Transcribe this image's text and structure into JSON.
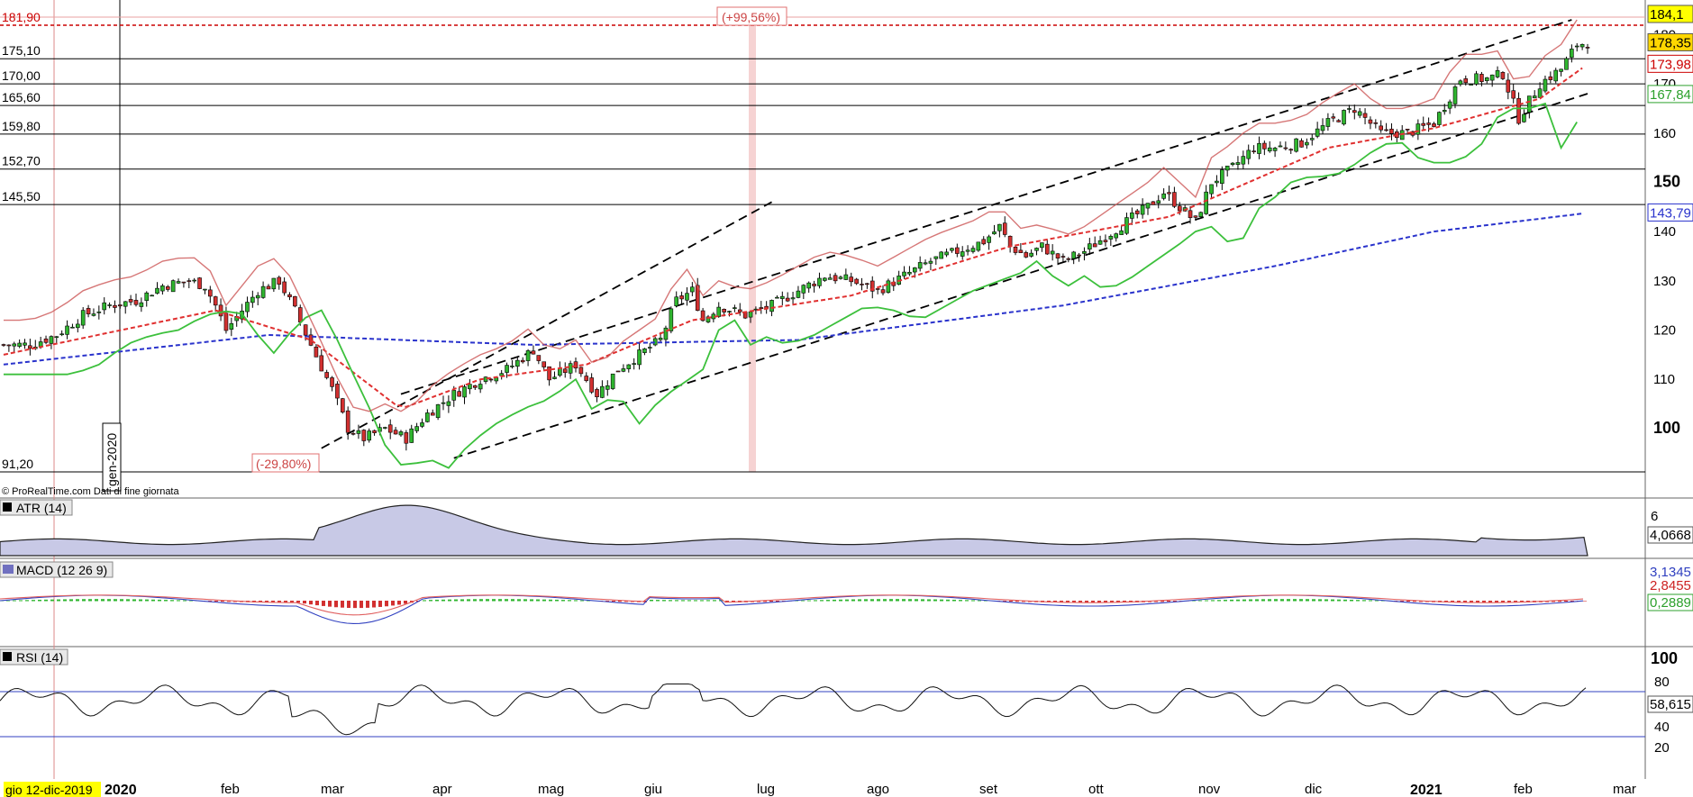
{
  "chart_data": {
    "type": "candlestick",
    "price_scale": {
      "min": 91.2,
      "max": 184.1
    },
    "price_ticks": [
      100,
      110,
      120,
      130,
      140,
      150,
      160,
      170,
      180
    ],
    "level_labels": [
      "181,90",
      "175,10",
      "170,00",
      "165,60",
      "159,80",
      "152,70",
      "145,50",
      "91,20"
    ],
    "levels": [
      175.1,
      170.0,
      165.6,
      159.8,
      152.7,
      145.5,
      91.2
    ],
    "resistance": 181.9,
    "badges": {
      "top": {
        "text": "184,1",
        "value": 184.1,
        "bg": "#ffff00",
        "fg": "#000000"
      },
      "last": {
        "text": "178,35",
        "value": 178.35,
        "bg": "#ffd700",
        "fg": "#000000"
      },
      "red": {
        "text": "173,98",
        "value": 173.98,
        "color": "#cc0000"
      },
      "green": {
        "text": "167,84",
        "value": 167.84,
        "color": "#2ca02c"
      },
      "blue": {
        "text": "143,79",
        "value": 143.79,
        "color": "#2a33cc"
      }
    },
    "annotations": {
      "gain": "(+99,56%)",
      "loss": "(-29,80%)",
      "vertical_date": "gen-2020"
    },
    "months": [
      "feb",
      "mar",
      "apr",
      "mag",
      "giu",
      "lug",
      "ago",
      "set",
      "ott",
      "nov",
      "dic",
      "feb",
      "mar"
    ],
    "years": [
      "2020",
      "2021"
    ],
    "start_date_label": "gio 12-dic-2019",
    "source": "© ProRealTime.com  Dati di fine giornata",
    "series_points": [
      [
        0,
        117
      ],
      [
        5,
        117
      ],
      [
        10,
        119
      ],
      [
        15,
        123
      ],
      [
        20,
        125
      ],
      [
        25,
        126
      ],
      [
        30,
        129
      ],
      [
        35,
        130
      ],
      [
        38,
        129
      ],
      [
        40,
        125
      ],
      [
        42,
        120
      ],
      [
        45,
        124
      ],
      [
        48,
        128
      ],
      [
        52,
        130
      ],
      [
        55,
        124
      ],
      [
        58,
        117
      ],
      [
        62,
        108
      ],
      [
        65,
        100
      ],
      [
        68,
        98
      ],
      [
        72,
        100
      ],
      [
        76,
        98
      ],
      [
        80,
        103
      ],
      [
        85,
        107
      ],
      [
        90,
        110
      ],
      [
        95,
        112
      ],
      [
        100,
        116
      ],
      [
        103,
        110
      ],
      [
        108,
        113
      ],
      [
        112,
        107
      ],
      [
        116,
        112
      ],
      [
        120,
        115
      ],
      [
        124,
        118
      ],
      [
        127,
        126
      ],
      [
        130,
        128
      ],
      [
        132,
        122
      ],
      [
        135,
        125
      ],
      [
        140,
        123
      ],
      [
        145,
        125
      ],
      [
        150,
        128
      ],
      [
        155,
        131
      ],
      [
        160,
        130
      ],
      [
        165,
        128
      ],
      [
        170,
        131
      ],
      [
        175,
        134
      ],
      [
        180,
        136
      ],
      [
        185,
        138
      ],
      [
        188,
        141
      ],
      [
        190,
        137
      ],
      [
        193,
        135
      ],
      [
        196,
        137
      ],
      [
        200,
        134
      ],
      [
        204,
        136
      ],
      [
        208,
        139
      ],
      [
        212,
        142
      ],
      [
        216,
        145
      ],
      [
        219,
        148
      ],
      [
        222,
        145
      ],
      [
        225,
        142
      ],
      [
        228,
        150
      ],
      [
        232,
        153
      ],
      [
        236,
        157
      ],
      [
        240,
        157
      ],
      [
        245,
        158
      ],
      [
        250,
        162
      ],
      [
        255,
        165
      ],
      [
        260,
        160
      ],
      [
        265,
        160
      ],
      [
        270,
        162
      ],
      [
        275,
        171
      ],
      [
        280,
        171
      ],
      [
        283,
        172
      ],
      [
        286,
        163
      ],
      [
        290,
        170
      ],
      [
        294,
        173
      ],
      [
        297,
        178
      ],
      [
        299,
        178.35
      ]
    ],
    "candle_count": 300,
    "overlays": {
      "ma_blue": [
        [
          0,
          113
        ],
        [
          50,
          119
        ],
        [
          100,
          117
        ],
        [
          150,
          118
        ],
        [
          200,
          125
        ],
        [
          240,
          133
        ],
        [
          270,
          140
        ],
        [
          299,
          143.79
        ]
      ],
      "ma_red": [
        [
          0,
          115
        ],
        [
          40,
          124
        ],
        [
          58,
          118
        ],
        [
          75,
          104
        ],
        [
          90,
          110
        ],
        [
          110,
          113
        ],
        [
          130,
          122
        ],
        [
          160,
          127
        ],
        [
          190,
          137
        ],
        [
          220,
          143
        ],
        [
          250,
          157
        ],
        [
          270,
          161
        ],
        [
          290,
          167
        ],
        [
          299,
          173.98
        ]
      ]
    },
    "indicators": {
      "atr": {
        "label": "ATR (14)",
        "value": "4,0668",
        "tick": "6"
      },
      "macd": {
        "label": "MACD (12 26 9)",
        "values": [
          "3,1345",
          "2,8455",
          "0,2889"
        ]
      },
      "rsi": {
        "label": "RSI (14)",
        "value": "58,615",
        "ticks": [
          "100",
          "80",
          "60",
          "40",
          "20"
        ]
      }
    }
  }
}
